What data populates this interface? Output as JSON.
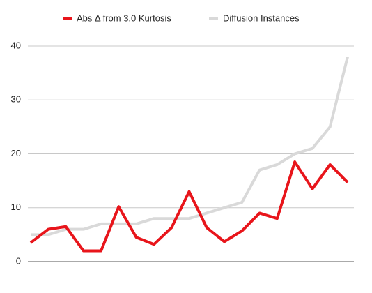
{
  "chart_data": {
    "type": "line",
    "series": [
      {
        "name": "Abs Δ from 3.0 Kurtosis",
        "color": "#e8151b",
        "values": [
          3.5,
          6,
          6.5,
          2,
          2,
          10.2,
          4.5,
          3.2,
          6.3,
          13,
          6.3,
          3.7,
          5.7,
          9,
          8,
          18.5,
          13.5,
          18,
          14.7
        ]
      },
      {
        "name": "Diffusion Instances",
        "color": "#d9d9d9",
        "values": [
          5,
          5,
          6,
          6,
          7,
          7,
          7,
          8,
          8,
          8,
          9,
          10,
          11,
          17,
          18,
          20,
          21,
          25,
          38
        ]
      }
    ],
    "ylim": [
      0,
      40
    ],
    "yticks": [
      0,
      10,
      20,
      30,
      40
    ],
    "grid": true,
    "legend": "top"
  }
}
